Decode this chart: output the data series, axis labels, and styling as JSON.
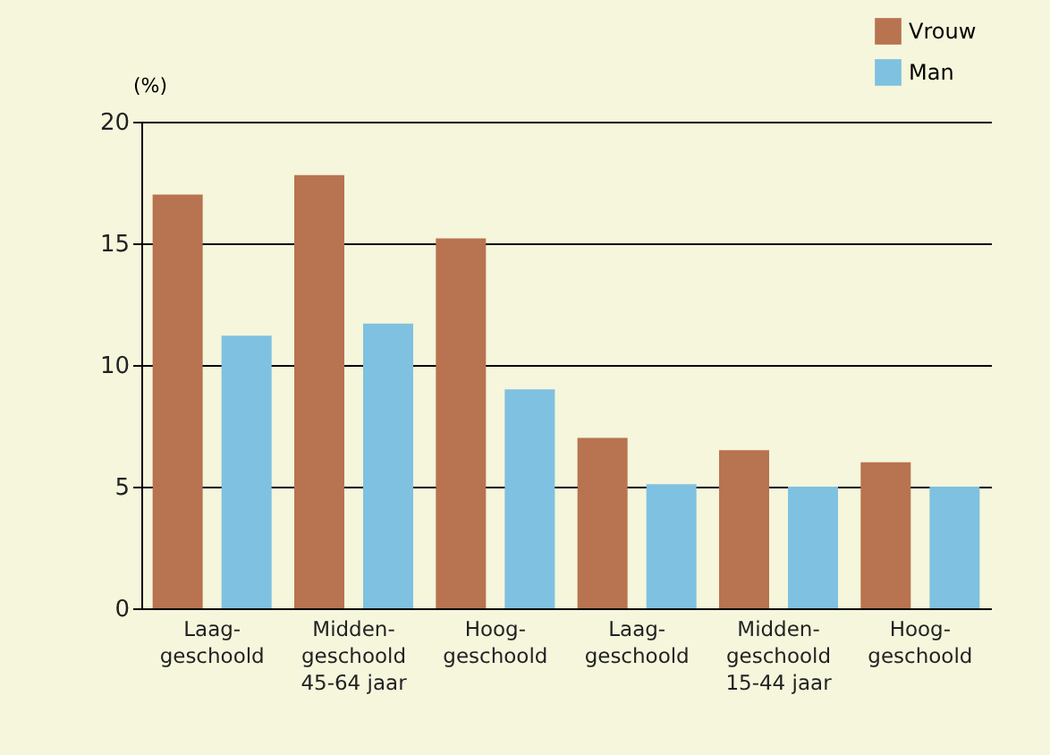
{
  "chart_data": {
    "type": "bar",
    "ylabel": "(%)",
    "categories": [
      "Laag-\ngeschoold",
      "Midden-\ngeschoold\n45-64 jaar",
      "Hoog-\ngeschoold",
      "Laag-\ngeschoold",
      "Midden-\ngeschoold\n15-44 jaar",
      "Hoog-\ngeschoold"
    ],
    "series": [
      {
        "name": "Vrouw",
        "color": "#b87350",
        "values": [
          17,
          17.8,
          15.2,
          7,
          6.5,
          6
        ]
      },
      {
        "name": "Man",
        "color": "#7fc1e0",
        "values": [
          11.2,
          11.7,
          9,
          5.1,
          5,
          5
        ]
      }
    ],
    "ylim": [
      0,
      20
    ],
    "yticks": [
      0,
      5,
      10,
      15,
      20
    ],
    "grid": "y",
    "legend": "top right"
  }
}
